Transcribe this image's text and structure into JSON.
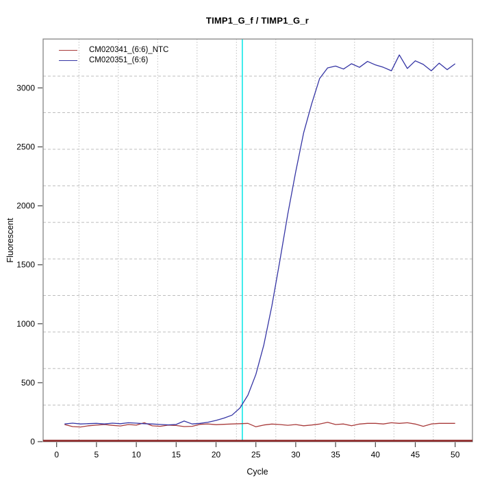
{
  "chart_data": {
    "type": "line",
    "title": "TIMP1_G_f / TIMP1_G_r",
    "xlabel": "Cycle",
    "ylabel": "Fluorescent",
    "x_ticks": [
      0,
      5,
      10,
      15,
      20,
      25,
      30,
      35,
      40,
      45,
      50
    ],
    "y_ticks": [
      0,
      500,
      1000,
      1500,
      2000,
      2500,
      3000
    ],
    "xlim": [
      -1.7,
      52.2
    ],
    "ylim": [
      0,
      3415
    ],
    "grid": "dotted-gray",
    "grid_x": [
      2.8,
      7.74,
      12.68,
      17.62,
      22.56,
      27.5,
      32.44,
      37.38,
      42.32,
      47.26
    ],
    "grid_y": [
      310,
      620,
      930,
      1240,
      1550,
      1860,
      2170,
      2480,
      2790,
      3100
    ],
    "legend_position": "top-left",
    "threshold_line": {
      "x": 23.3,
      "color": "#00e6e6",
      "orientation": "vertical"
    },
    "zero_line": {
      "y": 0,
      "color": "#8b2424"
    },
    "x": [
      1,
      2,
      3,
      4,
      5,
      6,
      7,
      8,
      9,
      10,
      11,
      12,
      13,
      14,
      15,
      16,
      17,
      18,
      19,
      20,
      21,
      22,
      23,
      24,
      25,
      26,
      27,
      28,
      29,
      30,
      31,
      32,
      33,
      34,
      35,
      36,
      37,
      38,
      39,
      40,
      41,
      42,
      43,
      44,
      45,
      46,
      47,
      48,
      49,
      50
    ],
    "series": [
      {
        "name": "CM020341_(6:6)_NTC",
        "color": "#a83a3a",
        "values": [
          145,
          128,
          124,
          135,
          140,
          145,
          138,
          133,
          145,
          140,
          160,
          134,
          130,
          140,
          137,
          128,
          130,
          147,
          150,
          144,
          147,
          150,
          152,
          155,
          126,
          141,
          149,
          145,
          139,
          145,
          135,
          141,
          149,
          164,
          145,
          150,
          135,
          149,
          155,
          155,
          150,
          160,
          155,
          160,
          149,
          130,
          150,
          155,
          155,
          155
        ]
      },
      {
        "name": "CM020351_(6:6)",
        "color": "#3434a4",
        "values": [
          150,
          157,
          150,
          153,
          155,
          150,
          157,
          152,
          160,
          157,
          152,
          150,
          146,
          142,
          146,
          175,
          150,
          155,
          165,
          180,
          200,
          225,
          285,
          395,
          570,
          820,
          1150,
          1530,
          1930,
          2290,
          2620,
          2865,
          3080,
          3170,
          3185,
          3160,
          3205,
          3175,
          3225,
          3195,
          3175,
          3145,
          3280,
          3165,
          3230,
          3200,
          3145,
          3210,
          3155,
          3205
        ]
      }
    ],
    "annotations": {
      "ct_threshold_cycle": 23.3
    }
  },
  "colors": {
    "box": "#848484",
    "grid": "#bdbdbd",
    "tick": "#444444",
    "background": "#ffffff"
  }
}
